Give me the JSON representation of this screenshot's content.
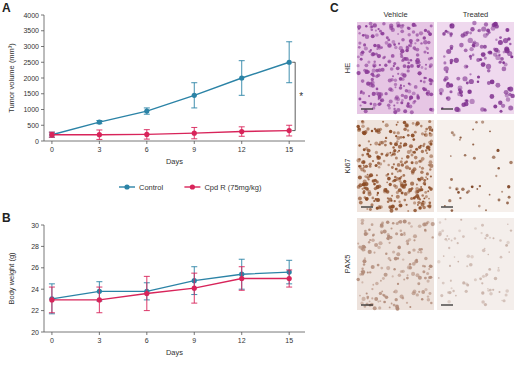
{
  "chart_data": [
    {
      "type": "line",
      "panel": "A",
      "x_label": "Days",
      "y_label": "Tumor volume (mm³)",
      "x": [
        0,
        3,
        6,
        9,
        12,
        15
      ],
      "xlim": [
        -0.5,
        16
      ],
      "xticks": [
        0,
        3,
        6,
        9,
        12,
        15
      ],
      "ylim": [
        0,
        4000
      ],
      "yticks": [
        0,
        500,
        1000,
        1500,
        2000,
        2500,
        3000,
        3500,
        4000
      ],
      "marker": "circle",
      "series": [
        {
          "color": "#2b83a6",
          "values": [
            200,
            600,
            950,
            1450,
            2000,
            2500
          ],
          "errors": [
            80,
            50,
            100,
            400,
            550,
            650
          ]
        },
        {
          "color": "#d8245a",
          "values": [
            200,
            200,
            210,
            250,
            300,
            330
          ],
          "errors": [
            80,
            150,
            150,
            180,
            150,
            170
          ]
        }
      ],
      "annotations": [
        {
          "text": "*"
        }
      ]
    },
    {
      "type": "line",
      "panel": "B",
      "x_label": "Days",
      "y_label": "Body weight (g)",
      "x": [
        0,
        3,
        6,
        9,
        12,
        15
      ],
      "xlim": [
        -0.5,
        16
      ],
      "xticks": [
        0,
        3,
        6,
        9,
        12,
        15
      ],
      "ylim": [
        20,
        30
      ],
      "yticks": [
        20,
        22,
        24,
        26,
        28,
        30
      ],
      "marker": "circle",
      "legend": "top",
      "series": [
        {
          "name": "Control",
          "color": "#2b83a6",
          "values": [
            23.1,
            23.8,
            23.8,
            24.8,
            25.4,
            25.6
          ],
          "errors": [
            1.4,
            0.9,
            0.8,
            1.3,
            1.4,
            1.1
          ]
        },
        {
          "name": "Cpd R (75mg/kg)",
          "color": "#d8245a",
          "values": [
            23.0,
            23.0,
            23.6,
            24.1,
            25.0,
            25.0
          ],
          "errors": [
            1.2,
            1.2,
            1.6,
            1.4,
            1.1,
            0.8
          ]
        }
      ]
    }
  ],
  "panel_c": {
    "panel": "C",
    "columns": [
      "Vehicle",
      "Treated"
    ],
    "rows": [
      "HE",
      "Ki67",
      "PAX5"
    ]
  }
}
